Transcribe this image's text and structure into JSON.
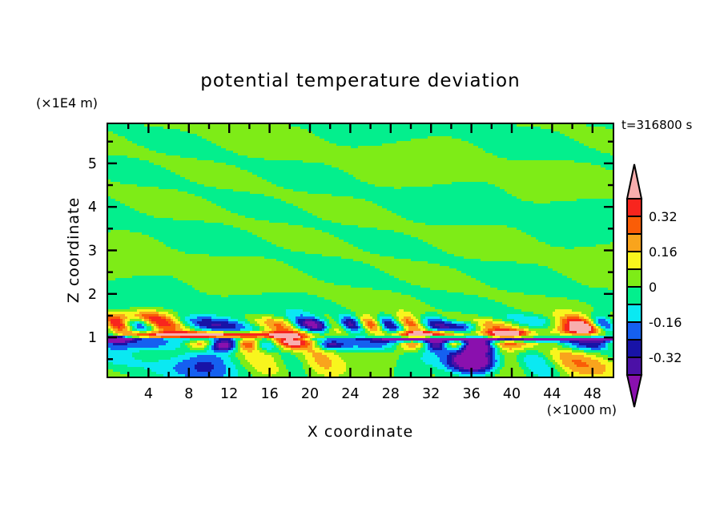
{
  "chart_data": {
    "type": "filled_contour",
    "title": "potential temperature deviation",
    "time_label": "t=316800 s",
    "xlabel": "X coordinate",
    "x_unit_label": "(×1000 m)",
    "ylabel": "Z coordinate",
    "y_unit_label": "(×1E4 m)",
    "xlim": [
      0,
      50
    ],
    "ylim": [
      0.1,
      5.9
    ],
    "x_major_ticks": [
      4,
      8,
      12,
      16,
      20,
      24,
      28,
      32,
      36,
      40,
      44,
      48
    ],
    "x_minor_step": 2,
    "y_major_ticks": [
      1,
      2,
      3,
      4,
      5
    ],
    "y_minor_step": 0.5,
    "grid": false,
    "levels": [
      -0.4,
      -0.32,
      -0.24,
      -0.16,
      -0.08,
      0,
      0.08,
      0.16,
      0.24,
      0.32,
      0.4
    ],
    "palette_low_to_high": [
      "#8A10AE",
      "#4B10A6",
      "#1813A7",
      "#1560F0",
      "#0AE9F2",
      "#03EF8D",
      "#7EEC17",
      "#F8F51D",
      "#F9A41C",
      "#FA5D07",
      "#F8251E",
      "#F8AEAE"
    ],
    "colorbar": {
      "labels": [
        {
          "text": "0.32",
          "boundary_index": 9
        },
        {
          "text": "0.16",
          "boundary_index": 7
        },
        {
          "text": "0",
          "boundary_index": 5
        },
        {
          "text": "-0.16",
          "boundary_index": 3
        },
        {
          "text": "-0.32",
          "boundary_index": 1
        }
      ],
      "over_arrow_color": "#F8AEAE",
      "under_arrow_color": "#8A10AE"
    },
    "field_model": {
      "description": "procedural approximation of the depicted theta-deviation field: calm two-tone green streaks aloft, turbulent mixing band near z=1 (x1E4 m), deep negative blob near x=36",
      "waves": [
        {
          "amp": 0.046,
          "fx": 0.25,
          "fz": 5.0,
          "phase": 0.0,
          "warp": {
            "amp": 1.8,
            "fx": 0.12,
            "fz": 1.1,
            "phase": 0.0
          }
        },
        {
          "amp": 0.027,
          "fx": 0.35,
          "fz": -2.2,
          "phase": 2.0
        },
        {
          "amp": 0.3,
          "fx": 1.05,
          "fz": 4.0,
          "phase": 0.2,
          "z0": 1.3,
          "sz": 0.19,
          "warp": {
            "amp": 2.8,
            "fx": 0.23,
            "fz": 0,
            "phase": 0.4
          }
        },
        {
          "amp": 0.26,
          "fx": 0.9,
          "fz": 0.0,
          "phase": 1.5,
          "z0": 0.84,
          "sz": 0.15,
          "warp": {
            "amp": 2.2,
            "fx": 0.31,
            "fz": 0,
            "phase": 2.1
          }
        },
        {
          "amp": 0.115,
          "fx": 0.5,
          "fz": 2.2,
          "phase": 1.2,
          "z0": 0.45,
          "sz": 0.4,
          "warp": {
            "amp": 2.2,
            "fx": 0.27,
            "fz": 0,
            "phase": 1.2
          }
        }
      ],
      "stripes": [
        {
          "amp": -0.55,
          "z0": 0.95,
          "sz": 0.045,
          "base": 0.6,
          "mod": 0.5,
          "fx": 0.13,
          "phase": 2.8,
          "warp": {
            "amp": 0.5,
            "fx": 0.45,
            "phase": 0.0
          }
        }
      ],
      "blobs": [
        {
          "x": 36.2,
          "z": 0.46,
          "sx": 2.3,
          "sz": 0.27,
          "amp": -0.62
        },
        {
          "x": 47.8,
          "z": 0.35,
          "sx": 3.0,
          "sz": 0.42,
          "amp": 0.2
        },
        {
          "x": 26.5,
          "z": 0.5,
          "sx": 3.2,
          "sz": 0.4,
          "amp": 0.15
        },
        {
          "x": 9.8,
          "z": 0.55,
          "sx": 2.8,
          "sz": 0.5,
          "amp": -0.16
        },
        {
          "x": 17.5,
          "z": 0.98,
          "sx": 2.0,
          "sz": 0.16,
          "amp": 0.48
        },
        {
          "x": 3.0,
          "z": 1.47,
          "sx": 3.0,
          "sz": 0.17,
          "amp": 0.3
        },
        {
          "x": 37.0,
          "z": 0.78,
          "sx": 2.0,
          "sz": 0.13,
          "amp": -0.3
        },
        {
          "x": 44.5,
          "z": 1.28,
          "sx": 2.6,
          "sz": 0.16,
          "amp": 0.28
        },
        {
          "x": 35.5,
          "z": 1.27,
          "sx": 1.8,
          "sz": 0.14,
          "amp": -0.4
        },
        {
          "x": 21.5,
          "z": 1.3,
          "sx": 1.6,
          "sz": 0.15,
          "amp": -0.3
        },
        {
          "x": 9.5,
          "z": 1.06,
          "sx": 7.5,
          "sz": 0.07,
          "amp": 0.55
        },
        {
          "x": 31.5,
          "z": 1.08,
          "sx": 3.2,
          "sz": 0.07,
          "amp": 0.55
        },
        {
          "x": 39.5,
          "z": 1.1,
          "sx": 1.8,
          "sz": 0.07,
          "amp": 0.52
        },
        {
          "x": 0.8,
          "z": 0.97,
          "sx": 1.5,
          "sz": 0.09,
          "amp": -0.45
        },
        {
          "x": 11.0,
          "z": 0.8,
          "sx": 1.2,
          "sz": 0.1,
          "amp": -0.28
        },
        {
          "x": 22.0,
          "z": 0.82,
          "sx": 1.3,
          "sz": 0.1,
          "amp": -0.3
        },
        {
          "x": 46.5,
          "z": 1.15,
          "sx": 2.5,
          "sz": 0.12,
          "amp": 0.35
        }
      ]
    },
    "colors": {
      "frame": "#000000",
      "text": "#000000",
      "background": "#ffffff"
    }
  }
}
